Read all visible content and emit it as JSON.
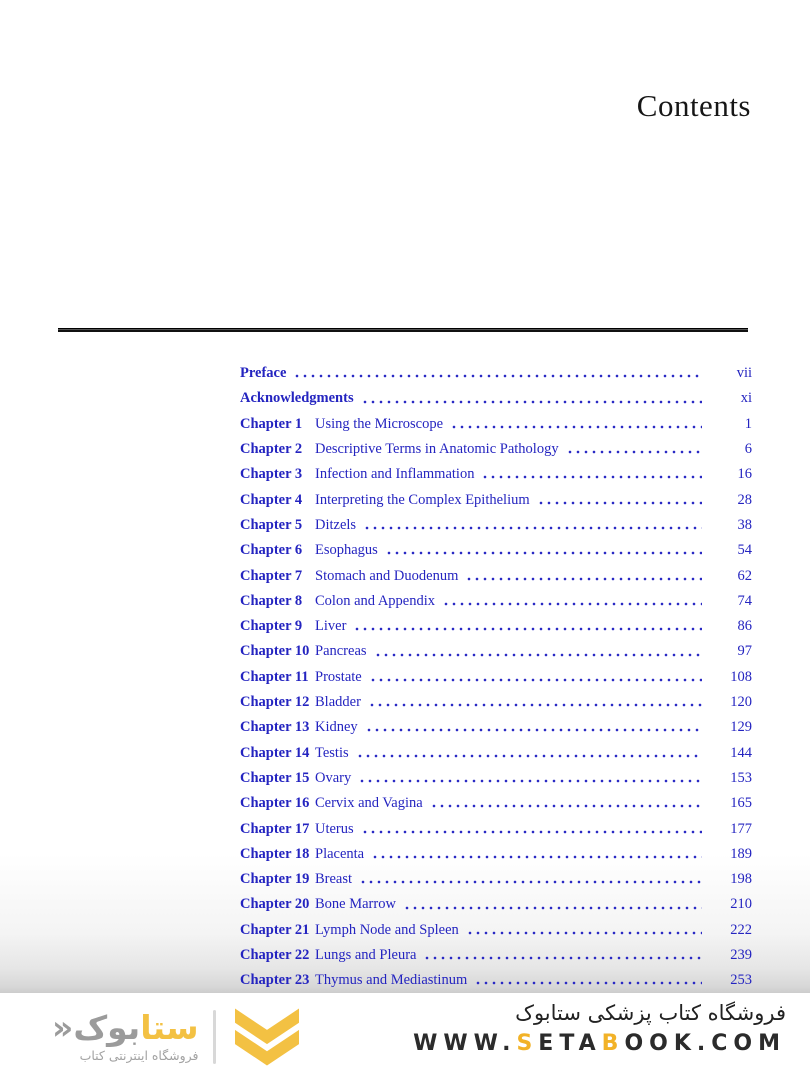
{
  "page": {
    "title": "Contents"
  },
  "toc": {
    "entries": [
      {
        "label": "Preface",
        "title": "",
        "page": "vii"
      },
      {
        "label": "Acknowledgments",
        "title": "",
        "page": "xi"
      },
      {
        "label": "Chapter 1",
        "title": "Using the Microscope",
        "page": "1"
      },
      {
        "label": "Chapter 2",
        "title": "Descriptive Terms in Anatomic Pathology",
        "page": "6"
      },
      {
        "label": "Chapter 3",
        "title": "Infection and Inflammation",
        "page": "16"
      },
      {
        "label": "Chapter 4",
        "title": "Interpreting the Complex Epithelium",
        "page": "28"
      },
      {
        "label": "Chapter 5",
        "title": "Ditzels",
        "page": "38"
      },
      {
        "label": "Chapter 6",
        "title": "Esophagus",
        "page": "54"
      },
      {
        "label": "Chapter 7",
        "title": "Stomach and Duodenum",
        "page": "62"
      },
      {
        "label": "Chapter 8",
        "title": "Colon and Appendix",
        "page": "74"
      },
      {
        "label": "Chapter 9",
        "title": "Liver",
        "page": "86"
      },
      {
        "label": "Chapter 10",
        "title": "Pancreas",
        "page": "97"
      },
      {
        "label": "Chapter 11",
        "title": "Prostate",
        "page": "108"
      },
      {
        "label": "Chapter 12",
        "title": "Bladder",
        "page": "120"
      },
      {
        "label": "Chapter 13",
        "title": "Kidney",
        "page": "129"
      },
      {
        "label": "Chapter 14",
        "title": "Testis",
        "page": "144"
      },
      {
        "label": "Chapter 15",
        "title": "Ovary",
        "page": "153"
      },
      {
        "label": "Chapter 16",
        "title": "Cervix and Vagina",
        "page": "165"
      },
      {
        "label": "Chapter 17",
        "title": "Uterus",
        "page": "177"
      },
      {
        "label": "Chapter 18",
        "title": "Placenta",
        "page": "189"
      },
      {
        "label": "Chapter 19",
        "title": "Breast",
        "page": "198"
      },
      {
        "label": "Chapter 20",
        "title": "Bone Marrow",
        "page": "210"
      },
      {
        "label": "Chapter 21",
        "title": "Lymph Node and Spleen",
        "page": "222"
      },
      {
        "label": "Chapter 22",
        "title": "Lungs and Pleura",
        "page": "239"
      },
      {
        "label": "Chapter 23",
        "title": "Thymus and Mediastinum",
        "page": "253"
      }
    ]
  },
  "footer": {
    "logo": {
      "wordmark_yellow": "ستا",
      "wordmark_gray": "بوک",
      "wordmark_mark": "«",
      "tagline": "فروشگاه اینترنتی کتاب",
      "chevron_icon": "double-chevron-down",
      "accent_color": "#F3C143",
      "gray_color": "#9B9B9B"
    },
    "store_line": "فروشگاه کتاب پزشکی ستابوک",
    "url": {
      "part1": "WWW.",
      "accent1": "S",
      "part2": "ETA",
      "accent2": "B",
      "part3": "OOK.COM"
    }
  },
  "colors": {
    "toc_blue": "#2424C0",
    "rule_black": "#111111",
    "logo_yellow": "#F3C143",
    "url_accent_yellow": "#F2B227",
    "logo_gray": "#9B9B9B",
    "footer_text": "#222222"
  }
}
